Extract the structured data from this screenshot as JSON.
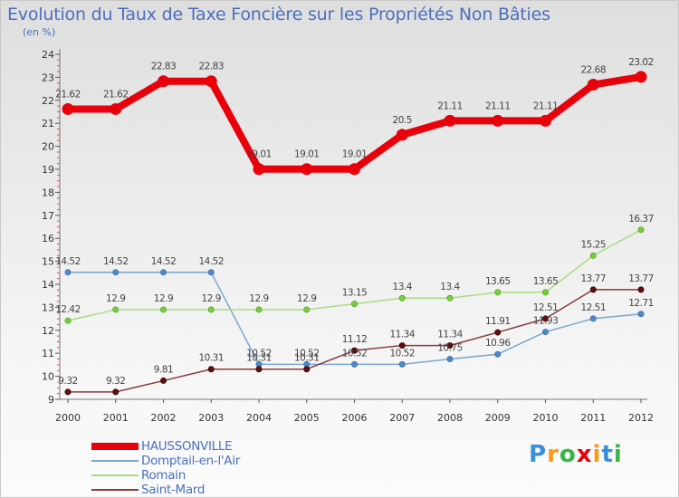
{
  "chart_data": {
    "type": "line",
    "title": "Evolution du Taux de Taxe Foncière sur les Propriétés Non Bâties",
    "ylabel": "(en %)",
    "xlabel": "",
    "ylim": [
      9,
      24
    ],
    "categories": [
      "2000",
      "2001",
      "2002",
      "2003",
      "2004",
      "2005",
      "2006",
      "2007",
      "2008",
      "2009",
      "2010",
      "2011",
      "2012"
    ],
    "yticks": [
      "9",
      "10",
      "11",
      "12",
      "13",
      "14",
      "15",
      "16",
      "17",
      "18",
      "19",
      "20",
      "21",
      "22",
      "23",
      "24"
    ],
    "grid": false,
    "legend_position": "bottom-left",
    "series": [
      {
        "name": "HAUSSONVILLE",
        "color": "#e8000b",
        "marker_color": "#e8000b",
        "values": [
          21.62,
          21.62,
          22.83,
          22.83,
          19.01,
          19.01,
          19.01,
          20.5,
          21.11,
          21.11,
          21.11,
          22.68,
          23.02
        ],
        "labels": [
          "21.62",
          "21.62",
          "22.83",
          "22.83",
          "19.01",
          "19.01",
          "19.01",
          "20.5",
          "21.11",
          "21.11",
          "21.11",
          "22.68",
          "23.02"
        ]
      },
      {
        "name": "Domptail-en-l'Air",
        "color": "#7ba7d0",
        "marker_color": "#4f88c6",
        "values": [
          14.52,
          14.52,
          14.52,
          14.52,
          10.52,
          10.52,
          10.52,
          10.52,
          10.75,
          10.96,
          11.93,
          12.51,
          12.71
        ],
        "labels": [
          "14.52",
          "14.52",
          "14.52",
          "14.52",
          "10.52",
          "10.52",
          "10.52",
          "10.52",
          "10.75",
          "10.96",
          "11.93",
          "12.51",
          "12.71"
        ]
      },
      {
        "name": "Romain",
        "color": "#a8dc82",
        "marker_color": "#7acc3c",
        "values": [
          12.42,
          12.9,
          12.9,
          12.9,
          12.9,
          12.9,
          13.15,
          13.4,
          13.4,
          13.65,
          13.65,
          15.25,
          16.37
        ],
        "labels": [
          "12.42",
          "12.9",
          "12.9",
          "12.9",
          "12.9",
          "12.9",
          "13.15",
          "13.4",
          "13.4",
          "13.65",
          "13.65",
          "15.25",
          "16.37"
        ]
      },
      {
        "name": "Saint-Mard",
        "color": "#8b3a3a",
        "marker_color": "#5c1010",
        "values": [
          9.32,
          9.32,
          9.81,
          10.31,
          10.31,
          10.31,
          11.12,
          11.34,
          11.34,
          11.91,
          12.51,
          13.77,
          13.77
        ],
        "labels": [
          "9.32",
          "9.32",
          "9.81",
          "10.31",
          "10.31",
          "10.31",
          "11.12",
          "11.34",
          "11.34",
          "11.91",
          "12.51",
          "13.77",
          "13.77"
        ]
      }
    ]
  },
  "brand": {
    "letters": [
      "P",
      "r",
      "o",
      "x",
      "i",
      "t",
      "i"
    ],
    "colors": [
      "#3b8fd6",
      "#f39c1a",
      "#39b54a",
      "#e8000b",
      "#f39c1a",
      "#3b8fd6",
      "#39b54a"
    ]
  }
}
